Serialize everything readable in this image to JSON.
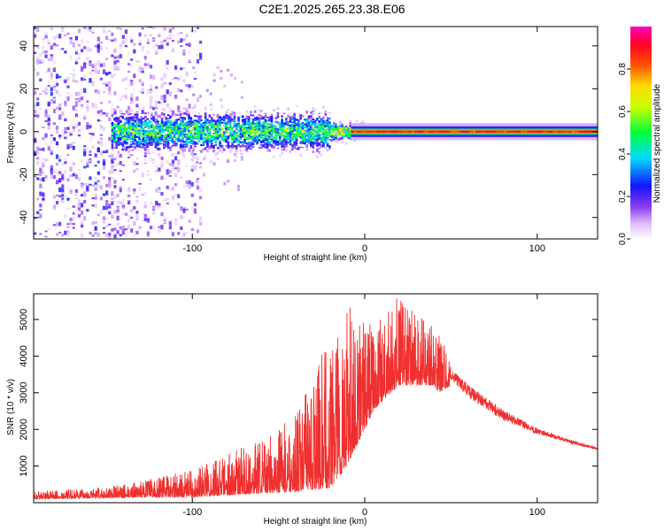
{
  "title": "C2E1.2025.265.23.38.E06",
  "colors": {
    "snr_line": "#f03030",
    "frame": "#000000",
    "background": "#ffffff"
  },
  "chart_data": [
    {
      "type": "heatmap",
      "name": "spectrogram",
      "xlabel": "Height of straight line (km)",
      "ylabel": "Frequency (Hz)",
      "xlim": [
        -192,
        135
      ],
      "ylim": [
        -50,
        49
      ],
      "xticks": [
        -100,
        0,
        100
      ],
      "yticks": [
        -40,
        -20,
        0,
        20,
        40
      ],
      "segments": [
        {
          "x_from": -192,
          "x_to": -150,
          "freq_spread_hz": 48,
          "peak_amplitude": 0.25,
          "description_level": "scattered noise"
        },
        {
          "x_from": -150,
          "x_to": -100,
          "freq_spread_hz": 48,
          "peak_amplitude": 0.45,
          "description_level": "scattered noise with central band"
        },
        {
          "x_from": -145,
          "x_to": -20,
          "freq_spread_hz": 8,
          "peak_amplitude": 0.6,
          "description_level": "broad central band"
        },
        {
          "x_from": -20,
          "x_to": 0,
          "freq_spread_hz": 3,
          "peak_amplitude": 0.85,
          "description_level": "narrowing band"
        },
        {
          "x_from": 0,
          "x_to": 135,
          "freq_spread_hz": 1.5,
          "peak_amplitude": 0.95,
          "description_level": "narrow carrier line"
        }
      ],
      "colorbar": {
        "label": "Normalized spectral amplitude",
        "range": [
          0,
          1
        ],
        "ticks": [
          0.0,
          0.2,
          0.4,
          0.6,
          0.8
        ],
        "tick_labels": [
          "0.0",
          "0.2",
          "0.4",
          "0.6",
          "0.8"
        ]
      }
    },
    {
      "type": "line",
      "name": "snr",
      "xlabel": "Height of straight line (km)",
      "ylabel": "SNR (10 * v/v)",
      "xlim": [
        -192,
        135
      ],
      "ylim": [
        0,
        5700
      ],
      "xticks": [
        -100,
        0,
        100
      ],
      "yticks": [
        1000,
        2000,
        3000,
        4000,
        5000
      ],
      "envelope": {
        "x": [
          -192,
          -160,
          -140,
          -120,
          -100,
          -80,
          -60,
          -40,
          -30,
          -20,
          -13,
          -5,
          0,
          5,
          15,
          20,
          30,
          40,
          43,
          50,
          60,
          80,
          100,
          120,
          135
        ],
        "y_low": [
          100,
          120,
          140,
          150,
          150,
          200,
          250,
          300,
          350,
          400,
          800,
          1500,
          2000,
          2500,
          3000,
          3200,
          3200,
          3200,
          3000,
          3200,
          2700,
          2100,
          1800,
          1550,
          1400
        ],
        "y_high": [
          320,
          380,
          500,
          700,
          900,
          1400,
          1700,
          2400,
          3500,
          4600,
          5500,
          5300,
          5000,
          4800,
          5300,
          5700,
          5100,
          4900,
          4700,
          3800,
          3400,
          2700,
          2100,
          1750,
          1550
        ]
      }
    }
  ]
}
